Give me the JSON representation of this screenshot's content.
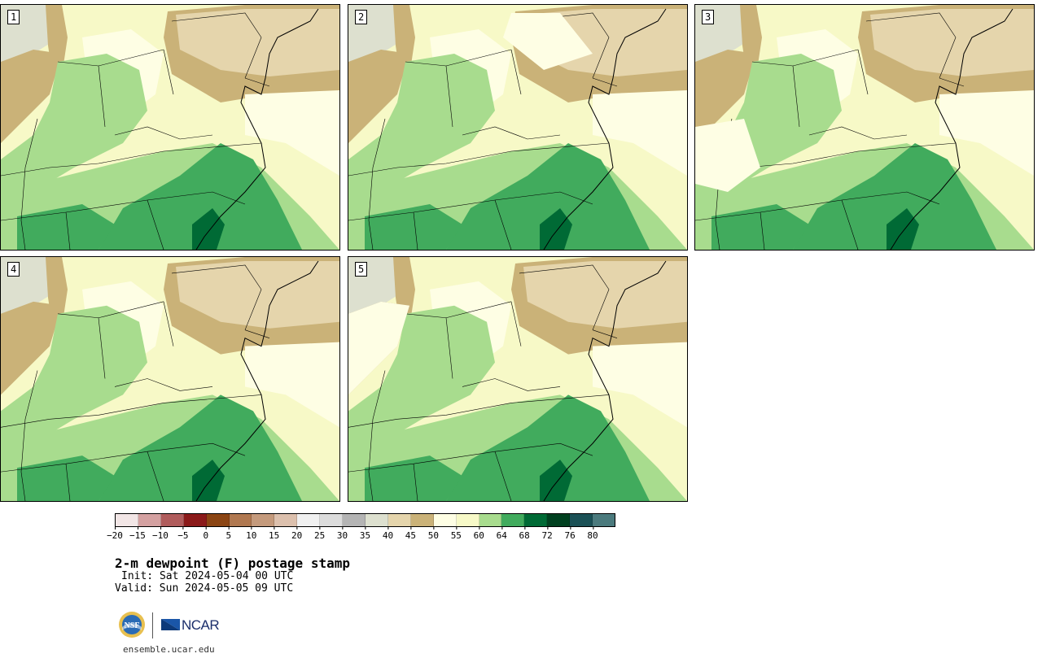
{
  "panels": [
    {
      "label": "1"
    },
    {
      "label": "2"
    },
    {
      "label": "3"
    },
    {
      "label": "4"
    },
    {
      "label": "5"
    }
  ],
  "colorbar": {
    "colors": [
      "#f2e6e6",
      "#d4a1a1",
      "#b05c5c",
      "#8b1a1a",
      "#8b4513",
      "#b07850",
      "#c49a7c",
      "#dcc0ad",
      "#f0f0f0",
      "#dcdcdc",
      "#b4b4b4",
      "#dde0cf",
      "#e5d5ac",
      "#cab278",
      "#fefee4",
      "#f7f9c7",
      "#a8dc8e",
      "#41ab5d",
      "#006a35",
      "#00401f",
      "#1b5156",
      "#4b7a7d"
    ],
    "tick_labels": [
      "−20",
      "−15",
      "−10",
      "−5",
      "0",
      "5",
      "10",
      "15",
      "20",
      "25",
      "30",
      "35",
      "40",
      "45",
      "50",
      "55",
      "60",
      "64",
      "68",
      "72",
      "76",
      "80"
    ]
  },
  "map_colors": {
    "background": "#f7f9c7",
    "lightest": "#fefee4",
    "dry_tan": "#e5d5ac",
    "dry_brown": "#cab278",
    "grey": "#dde0cf",
    "green_light": "#a8dc8e",
    "green_mid": "#41ab5d",
    "green_dark": "#006a35"
  },
  "title": "2-m dewpoint (F) postage stamp",
  "init": "Init: Sat 2024-05-04 00 UTC",
  "valid": "Valid: Sun 2024-05-05 09 UTC",
  "logos": {
    "nsf": "NSF",
    "ncar": "NCAR"
  },
  "url": "ensemble.ucar.edu"
}
